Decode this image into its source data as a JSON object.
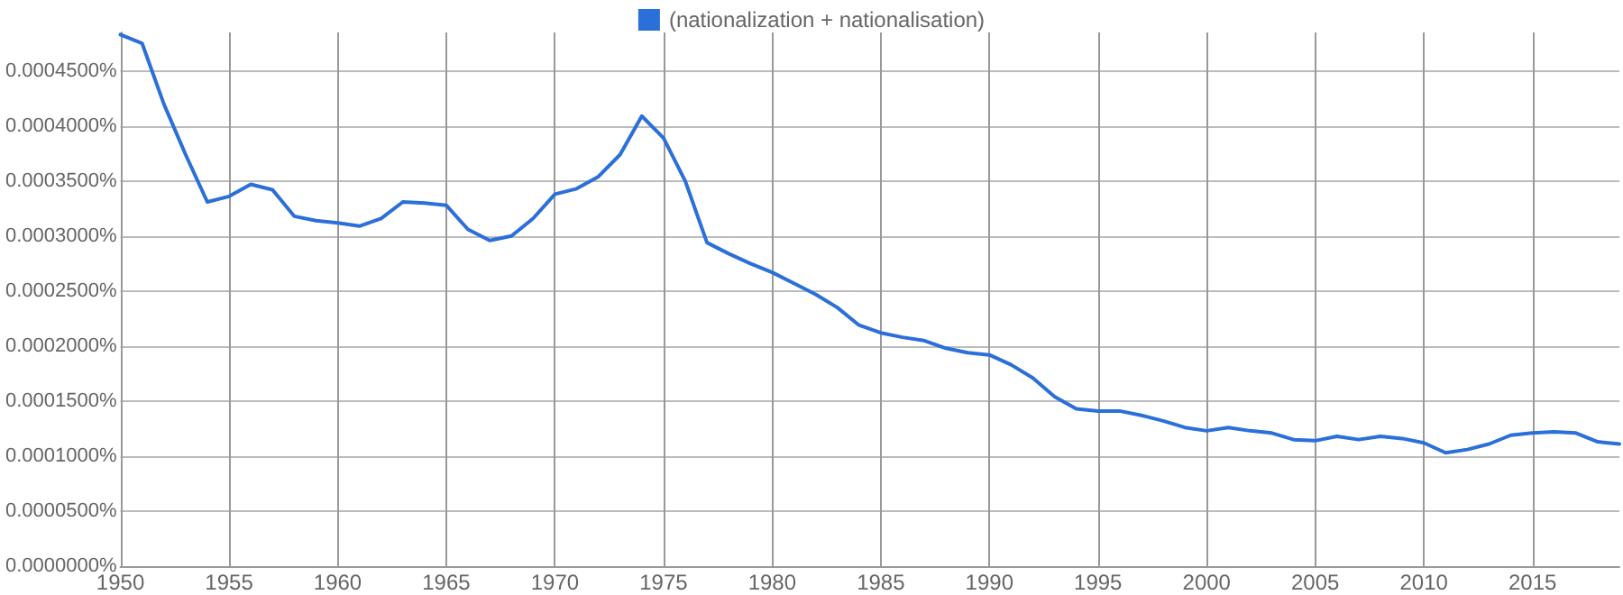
{
  "chart_data": {
    "type": "line",
    "legend": "top",
    "grid": true,
    "marker": "none",
    "line_style": "solid",
    "x": [
      1950,
      1951,
      1952,
      1953,
      1954,
      1955,
      1956,
      1957,
      1958,
      1959,
      1960,
      1961,
      1962,
      1963,
      1964,
      1965,
      1966,
      1967,
      1968,
      1969,
      1970,
      1971,
      1972,
      1973,
      1974,
      1975,
      1976,
      1977,
      1978,
      1979,
      1980,
      1981,
      1982,
      1983,
      1984,
      1985,
      1986,
      1987,
      1988,
      1989,
      1990,
      1991,
      1992,
      1993,
      1994,
      1995,
      1996,
      1997,
      1998,
      1999,
      2000,
      2001,
      2002,
      2003,
      2004,
      2005,
      2006,
      2007,
      2008,
      2009,
      2010,
      2011,
      2012,
      2013,
      2014,
      2015,
      2016,
      2017,
      2018,
      2019
    ],
    "series": [
      {
        "name": "(nationalization + nationalisation)",
        "color": "#2b6fd9",
        "values": [
          0.000483,
          0.000475,
          0.00042,
          0.000374,
          0.000331,
          0.000336,
          0.000347,
          0.000342,
          0.000318,
          0.000314,
          0.000312,
          0.000309,
          0.000316,
          0.000331,
          0.00033,
          0.000328,
          0.000306,
          0.000296,
          0.0003,
          0.000316,
          0.000338,
          0.000343,
          0.000354,
          0.000374,
          0.000409,
          0.000389,
          0.00035,
          0.000294,
          0.000284,
          0.000275,
          0.000267,
          0.000257,
          0.000247,
          0.000235,
          0.000219,
          0.000212,
          0.000208,
          0.000205,
          0.000198,
          0.000194,
          0.000192,
          0.000183,
          0.000171,
          0.000154,
          0.000143,
          0.000141,
          0.000141,
          0.000137,
          0.000132,
          0.000126,
          0.000123,
          0.000126,
          0.000123,
          0.000121,
          0.000115,
          0.000114,
          0.000118,
          0.000115,
          0.000118,
          0.000116,
          0.000112,
          0.000103,
          0.000106,
          0.000111,
          0.000119,
          0.000121,
          0.000122,
          0.000121,
          0.000113,
          0.000111
        ]
      }
    ],
    "xlim": [
      1950,
      2019
    ],
    "xticks": [
      1950,
      1955,
      1960,
      1965,
      1970,
      1975,
      1980,
      1985,
      1990,
      1995,
      2000,
      2005,
      2010,
      2015
    ],
    "ylim": [
      0,
      0.000485
    ],
    "yticks": [
      {
        "value": 0,
        "label": "0.0000000%"
      },
      {
        "value": 5e-05,
        "label": "0.0000500%"
      },
      {
        "value": 0.0001,
        "label": "0.0001000%"
      },
      {
        "value": 0.00015,
        "label": "0.0001500%"
      },
      {
        "value": 0.0002,
        "label": "0.0002000%"
      },
      {
        "value": 0.00025,
        "label": "0.0002500%"
      },
      {
        "value": 0.0003,
        "label": "0.0003000%"
      },
      {
        "value": 0.00035,
        "label": "0.0003500%"
      },
      {
        "value": 0.0004,
        "label": "0.0004000%"
      },
      {
        "value": 0.00045,
        "label": "0.0004500%"
      }
    ]
  }
}
